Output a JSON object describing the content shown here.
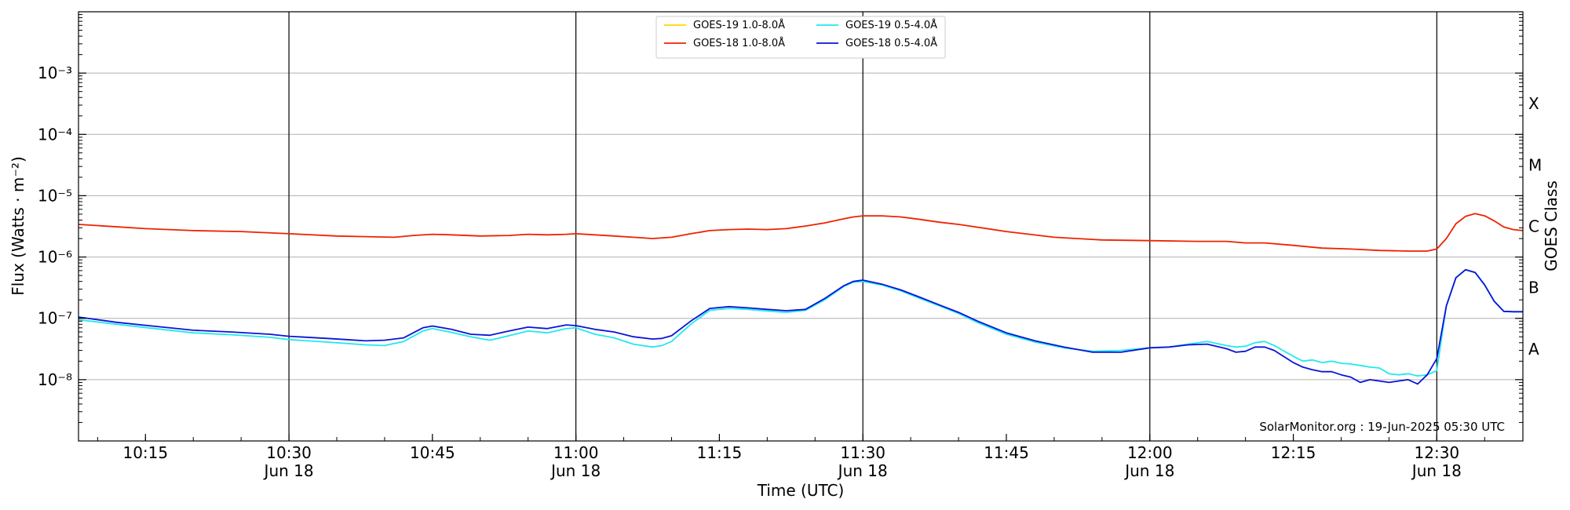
{
  "chart_data": {
    "type": "line",
    "title": "",
    "xlabel": "Time (UTC)",
    "ylabel": "Flux (Watts · m⁻²)",
    "y2label": "GOES Class",
    "yscale": "log",
    "ylim": [
      1e-09,
      0.01
    ],
    "xlim": [
      "10:08",
      "12:39"
    ],
    "footer": "SolarMonitor.org : 19-Jun-2025 05:30 UTC",
    "grid": "horizontal at each decade",
    "legend_position": "top-center",
    "y_ticks": [
      {
        "value": 1e-08,
        "label": "10⁻⁸"
      },
      {
        "value": 1e-07,
        "label": "10⁻⁷"
      },
      {
        "value": 1e-06,
        "label": "10⁻⁶"
      },
      {
        "value": 1e-05,
        "label": "10⁻⁵"
      },
      {
        "value": 0.0001,
        "label": "10⁻⁴"
      },
      {
        "value": 0.001,
        "label": "10⁻³"
      }
    ],
    "x_ticks": [
      {
        "time": "10:15",
        "label": "10:15",
        "sub": ""
      },
      {
        "time": "10:30",
        "label": "10:30",
        "sub": "Jun 18",
        "major": true
      },
      {
        "time": "10:45",
        "label": "10:45",
        "sub": ""
      },
      {
        "time": "11:00",
        "label": "11:00",
        "sub": "Jun 18",
        "major": true
      },
      {
        "time": "11:15",
        "label": "11:15",
        "sub": ""
      },
      {
        "time": "11:30",
        "label": "11:30",
        "sub": "Jun 18",
        "major": true
      },
      {
        "time": "11:45",
        "label": "11:45",
        "sub": ""
      },
      {
        "time": "12:00",
        "label": "12:00",
        "sub": "Jun 18",
        "major": true
      },
      {
        "time": "12:15",
        "label": "12:15",
        "sub": ""
      },
      {
        "time": "12:30",
        "label": "12:30",
        "sub": "Jun 18",
        "major": true
      }
    ],
    "goes_classes": [
      {
        "label": "A",
        "value": 3.16e-08
      },
      {
        "label": "B",
        "value": 3.16e-07
      },
      {
        "label": "C",
        "value": 3.16e-06
      },
      {
        "label": "M",
        "value": 3.16e-05
      },
      {
        "label": "X",
        "value": 0.000316
      }
    ],
    "series": [
      {
        "name": "GOES-19 1.0-8.0Å",
        "color": "#ffd700",
        "x": [],
        "values": []
      },
      {
        "name": "GOES-18 1.0-8.0Å",
        "color": "#ee2200",
        "x": [
          "10:08",
          "10:15",
          "10:20",
          "10:25",
          "10:30",
          "10:35",
          "10:38",
          "10:41",
          "10:43",
          "10:45",
          "10:47",
          "10:50",
          "10:53",
          "10:55",
          "10:57",
          "10:59",
          "11:00",
          "11:02",
          "11:04",
          "11:06",
          "11:08",
          "11:10",
          "11:12",
          "11:14",
          "11:16",
          "11:18",
          "11:20",
          "11:22",
          "11:24",
          "11:26",
          "11:28",
          "11:29",
          "11:30",
          "11:32",
          "11:34",
          "11:36",
          "11:38",
          "11:40",
          "11:45",
          "11:50",
          "11:55",
          "12:00",
          "12:05",
          "12:08",
          "12:10",
          "12:12",
          "12:15",
          "12:18",
          "12:21",
          "12:24",
          "12:27",
          "12:29",
          "12:30",
          "12:31",
          "12:32",
          "12:33",
          "12:34",
          "12:35",
          "12:36",
          "12:37",
          "12:38",
          "12:39"
        ],
        "values": [
          3.4e-06,
          2.9e-06,
          2.7e-06,
          2.6e-06,
          2.4e-06,
          2.2e-06,
          2.15e-06,
          2.1e-06,
          2.25e-06,
          2.35e-06,
          2.3e-06,
          2.2e-06,
          2.25e-06,
          2.35e-06,
          2.3e-06,
          2.35e-06,
          2.4e-06,
          2.3e-06,
          2.2e-06,
          2.1e-06,
          2e-06,
          2.1e-06,
          2.4e-06,
          2.7e-06,
          2.8e-06,
          2.85e-06,
          2.8e-06,
          2.9e-06,
          3.2e-06,
          3.6e-06,
          4.2e-06,
          4.5e-06,
          4.7e-06,
          4.7e-06,
          4.5e-06,
          4.1e-06,
          3.7e-06,
          3.4e-06,
          2.6e-06,
          2.1e-06,
          1.9e-06,
          1.85e-06,
          1.8e-06,
          1.8e-06,
          1.7e-06,
          1.7e-06,
          1.55e-06,
          1.4e-06,
          1.35e-06,
          1.28e-06,
          1.25e-06,
          1.25e-06,
          1.35e-06,
          2e-06,
          3.5e-06,
          4.6e-06,
          5.1e-06,
          4.7e-06,
          3.9e-06,
          3.1e-06,
          2.8e-06,
          2.7e-06
        ]
      },
      {
        "name": "GOES-19 0.5-4.0Å",
        "color": "#22e8f0",
        "x": [
          "10:08",
          "10:12",
          "10:16",
          "10:20",
          "10:24",
          "10:28",
          "10:30",
          "10:34",
          "10:36",
          "10:38",
          "10:40",
          "10:42",
          "10:44",
          "10:45",
          "10:47",
          "10:49",
          "10:51",
          "10:53",
          "10:55",
          "10:57",
          "10:59",
          "11:00",
          "11:02",
          "11:04",
          "11:06",
          "11:08",
          "11:09",
          "11:10",
          "11:12",
          "11:14",
          "11:16",
          "11:18",
          "11:20",
          "11:22",
          "11:24",
          "11:26",
          "11:28",
          "11:29",
          "11:30",
          "11:32",
          "11:34",
          "11:36",
          "11:38",
          "11:40",
          "11:42",
          "11:45",
          "11:48",
          "11:51",
          "11:54",
          "11:57",
          "12:00",
          "12:02",
          "12:04",
          "12:06",
          "12:08",
          "12:09",
          "12:10",
          "12:11",
          "12:12",
          "12:13",
          "12:15",
          "12:16",
          "12:17",
          "12:18",
          "12:19",
          "12:20",
          "12:21",
          "12:22",
          "12:23",
          "12:24",
          "12:25",
          "12:26",
          "12:27",
          "12:28",
          "12:29",
          "12:30",
          "12:31",
          "12:32",
          "12:33",
          "12:34",
          "12:35",
          "12:36",
          "12:37",
          "12:38",
          "12:39"
        ],
        "values": [
          9.5e-08,
          8e-08,
          6.8e-08,
          5.8e-08,
          5.4e-08,
          4.9e-08,
          4.5e-08,
          4.1e-08,
          3.9e-08,
          3.7e-08,
          3.6e-08,
          4.2e-08,
          6.2e-08,
          6.8e-08,
          5.9e-08,
          5e-08,
          4.4e-08,
          5.2e-08,
          6.2e-08,
          5.8e-08,
          6.8e-08,
          7e-08,
          5.5e-08,
          4.8e-08,
          3.8e-08,
          3.4e-08,
          3.6e-08,
          4.2e-08,
          8e-08,
          1.35e-07,
          1.45e-07,
          1.4e-07,
          1.32e-07,
          1.25e-07,
          1.35e-07,
          2e-07,
          3.3e-07,
          3.9e-07,
          4e-07,
          3.5e-07,
          2.8e-07,
          2.1e-07,
          1.6e-07,
          1.2e-07,
          8.5e-08,
          5.5e-08,
          4.1e-08,
          3.3e-08,
          2.9e-08,
          3e-08,
          3.3e-08,
          3.4e-08,
          3.8e-08,
          4.2e-08,
          3.6e-08,
          3.4e-08,
          3.5e-08,
          4e-08,
          4.2e-08,
          3.6e-08,
          2.4e-08,
          2e-08,
          2.1e-08,
          1.9e-08,
          2e-08,
          1.85e-08,
          1.8e-08,
          1.7e-08,
          1.6e-08,
          1.55e-08,
          1.25e-08,
          1.2e-08,
          1.25e-08,
          1.15e-08,
          1.2e-08,
          1.4e-08,
          1.6e-07,
          4.6e-07,
          6.2e-07,
          5.6e-07,
          3.5e-07,
          1.9e-07,
          1.3e-07,
          1.28e-07,
          1.28e-07
        ]
      },
      {
        "name": "GOES-18 0.5-4.0Å",
        "color": "#0a14d8",
        "x": [
          "10:08",
          "10:12",
          "10:16",
          "10:20",
          "10:24",
          "10:28",
          "10:30",
          "10:34",
          "10:36",
          "10:38",
          "10:40",
          "10:42",
          "10:44",
          "10:45",
          "10:47",
          "10:49",
          "10:51",
          "10:53",
          "10:55",
          "10:57",
          "10:59",
          "11:00",
          "11:02",
          "11:04",
          "11:06",
          "11:08",
          "11:09",
          "11:10",
          "11:12",
          "11:14",
          "11:16",
          "11:18",
          "11:20",
          "11:22",
          "11:24",
          "11:26",
          "11:28",
          "11:29",
          "11:30",
          "11:32",
          "11:34",
          "11:36",
          "11:38",
          "11:40",
          "11:42",
          "11:45",
          "11:48",
          "11:51",
          "11:54",
          "11:57",
          "12:00",
          "12:02",
          "12:04",
          "12:06",
          "12:08",
          "12:09",
          "12:10",
          "12:11",
          "12:12",
          "12:13",
          "12:15",
          "12:16",
          "12:17",
          "12:18",
          "12:19",
          "12:20",
          "12:21",
          "12:22",
          "12:23",
          "12:24",
          "12:25",
          "12:26",
          "12:27",
          "12:28",
          "12:29",
          "12:30",
          "12:31",
          "12:32",
          "12:33",
          "12:34",
          "12:35",
          "12:36",
          "12:37",
          "12:38",
          "12:39"
        ],
        "values": [
          1.05e-07,
          8.6e-08,
          7.4e-08,
          6.4e-08,
          6e-08,
          5.5e-08,
          5.1e-08,
          4.7e-08,
          4.5e-08,
          4.3e-08,
          4.4e-08,
          4.8e-08,
          7e-08,
          7.5e-08,
          6.6e-08,
          5.5e-08,
          5.3e-08,
          6.2e-08,
          7.2e-08,
          6.8e-08,
          7.8e-08,
          7.6e-08,
          6.6e-08,
          6e-08,
          5e-08,
          4.6e-08,
          4.7e-08,
          5.2e-08,
          9e-08,
          1.45e-07,
          1.55e-07,
          1.48e-07,
          1.4e-07,
          1.33e-07,
          1.4e-07,
          2.1e-07,
          3.4e-07,
          4e-07,
          4.2e-07,
          3.6e-07,
          2.9e-07,
          2.2e-07,
          1.65e-07,
          1.25e-07,
          9e-08,
          5.8e-08,
          4.3e-08,
          3.4e-08,
          2.8e-08,
          2.8e-08,
          3.3e-08,
          3.4e-08,
          3.7e-08,
          3.8e-08,
          3.2e-08,
          2.8e-08,
          2.9e-08,
          3.4e-08,
          3.4e-08,
          3e-08,
          1.9e-08,
          1.6e-08,
          1.45e-08,
          1.35e-08,
          1.35e-08,
          1.2e-08,
          1.1e-08,
          9e-09,
          1e-08,
          9.5e-09,
          9e-09,
          9.5e-09,
          1e-08,
          8.5e-09,
          1.2e-08,
          2.2e-08,
          1.6e-07,
          4.6e-07,
          6.2e-07,
          5.6e-07,
          3.5e-07,
          1.9e-07,
          1.3e-07,
          1.28e-07,
          1.28e-07
        ]
      }
    ]
  }
}
